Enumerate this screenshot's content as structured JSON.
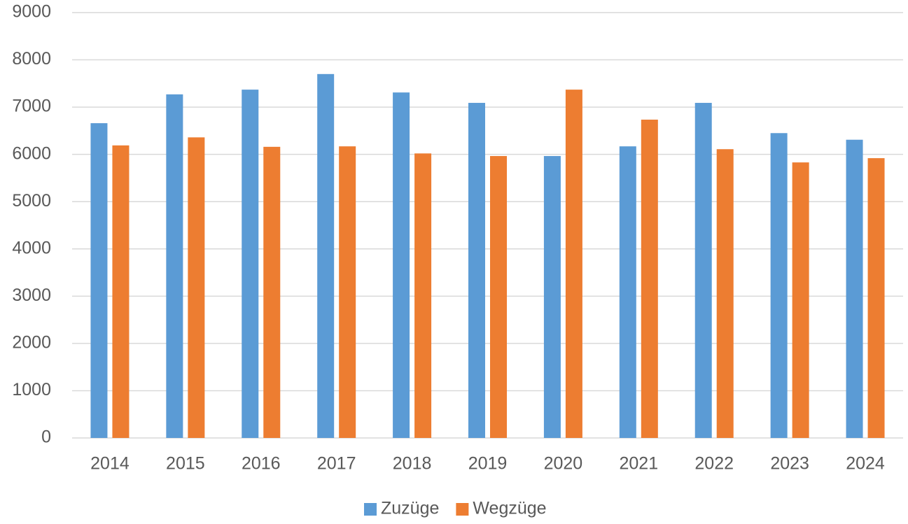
{
  "chart_data": {
    "type": "bar",
    "categories": [
      "2014",
      "2015",
      "2016",
      "2017",
      "2018",
      "2019",
      "2020",
      "2021",
      "2022",
      "2023",
      "2024"
    ],
    "series": [
      {
        "name": "Zuzüge",
        "color": "#5b9bd5",
        "values": [
          6660,
          7270,
          7370,
          7700,
          7310,
          7090,
          5965,
          6170,
          7090,
          6450,
          6310
        ]
      },
      {
        "name": "Wegzüge",
        "color": "#ed7d31",
        "values": [
          6190,
          6360,
          6160,
          6170,
          6020,
          5965,
          7370,
          6735,
          6110,
          5830,
          5920
        ]
      }
    ],
    "ylim": [
      0,
      9000
    ],
    "yticks": [
      0,
      1000,
      2000,
      3000,
      4000,
      5000,
      6000,
      7000,
      8000,
      9000
    ],
    "grid": true,
    "legend": "bottom"
  }
}
